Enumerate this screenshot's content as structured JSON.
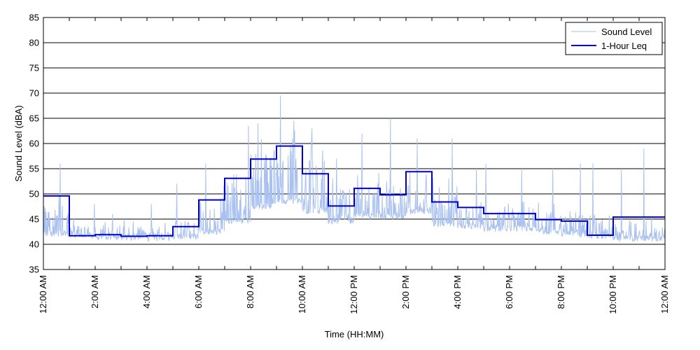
{
  "chart_data": {
    "type": "line",
    "xlabel": "Time (HH:MM)",
    "ylabel": "Sound Level (dBA)",
    "ylim": [
      35,
      85
    ],
    "xlim": [
      0,
      24
    ],
    "grid": "horizontal",
    "legend_position": "top-right",
    "y_ticks": [
      35,
      40,
      45,
      50,
      55,
      60,
      65,
      70,
      75,
      80,
      85
    ],
    "x_ticks": [
      {
        "hour": 0,
        "label": "12:00 AM"
      },
      {
        "hour": 2,
        "label": "2:00 AM"
      },
      {
        "hour": 4,
        "label": "4:00 AM"
      },
      {
        "hour": 6,
        "label": "6:00 AM"
      },
      {
        "hour": 8,
        "label": "8:00 AM"
      },
      {
        "hour": 10,
        "label": "10:00 AM"
      },
      {
        "hour": 12,
        "label": "12:00 PM"
      },
      {
        "hour": 14,
        "label": "2:00 PM"
      },
      {
        "hour": 16,
        "label": "4:00 PM"
      },
      {
        "hour": 18,
        "label": "6:00 PM"
      },
      {
        "hour": 20,
        "label": "8:00 PM"
      },
      {
        "hour": 22,
        "label": "10:00 PM"
      },
      {
        "hour": 24,
        "label": "12:00 AM"
      }
    ],
    "series": [
      {
        "name": "Sound Level",
        "color": "#a9c1f0",
        "style": "thin-line",
        "hourly_profile": [
          {
            "base": 41.5,
            "spread": 6,
            "peak": 56
          },
          {
            "base": 41,
            "spread": 2,
            "peak": 48
          },
          {
            "base": 40.8,
            "spread": 2,
            "peak": 46
          },
          {
            "base": 40.8,
            "spread": 2,
            "peak": 45
          },
          {
            "base": 40.6,
            "spread": 2,
            "peak": 48
          },
          {
            "base": 41,
            "spread": 4,
            "peak": 52
          },
          {
            "base": 42,
            "spread": 7,
            "peak": 56
          },
          {
            "base": 44,
            "spread": 9,
            "peak": 63.5
          },
          {
            "base": 47,
            "spread": 11,
            "peak": 64
          },
          {
            "base": 48,
            "spread": 12,
            "peak": 69.5
          },
          {
            "base": 46,
            "spread": 10,
            "peak": 63
          },
          {
            "base": 44,
            "spread": 6,
            "peak": 57
          },
          {
            "base": 45,
            "spread": 6,
            "peak": 62
          },
          {
            "base": 45,
            "spread": 5,
            "peak": 65
          },
          {
            "base": 46,
            "spread": 7,
            "peak": 61
          },
          {
            "base": 43.5,
            "spread": 6,
            "peak": 61
          },
          {
            "base": 43,
            "spread": 4,
            "peak": 55
          },
          {
            "base": 42.5,
            "spread": 4,
            "peak": 56
          },
          {
            "base": 42.5,
            "spread": 4,
            "peak": 55
          },
          {
            "base": 42,
            "spread": 4,
            "peak": 55
          },
          {
            "base": 41.5,
            "spread": 4,
            "peak": 56
          },
          {
            "base": 41,
            "spread": 4,
            "peak": 56
          },
          {
            "base": 40.5,
            "spread": 3,
            "peak": 55
          },
          {
            "base": 40.5,
            "spread": 3,
            "peak": 59
          }
        ]
      },
      {
        "name": "1-Hour Leq",
        "color": "#0000cc",
        "style": "thick-step",
        "hours": [
          0,
          1,
          2,
          3,
          4,
          5,
          6,
          7,
          8,
          9,
          10,
          11,
          12,
          13,
          14,
          15,
          16,
          17,
          18,
          19,
          20,
          21,
          22,
          23
        ],
        "values": [
          49.6,
          41.7,
          41.9,
          41.6,
          41.7,
          43.5,
          48.8,
          53.1,
          56.9,
          59.5,
          54.0,
          47.6,
          51.1,
          49.8,
          54.4,
          48.4,
          47.3,
          46.1,
          46.1,
          44.9,
          44.6,
          41.8,
          45.4,
          45.4
        ]
      }
    ]
  }
}
